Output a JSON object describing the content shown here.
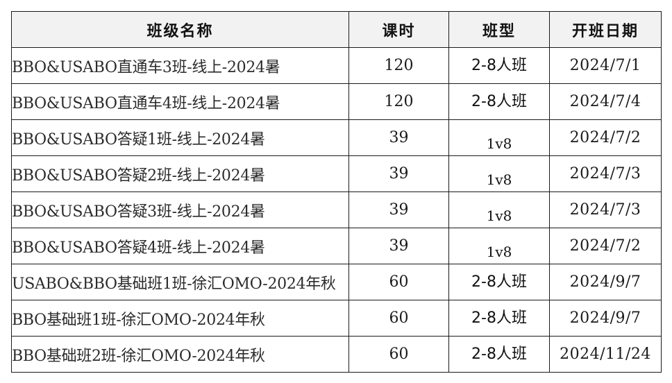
{
  "table": {
    "headers": {
      "name": "班级名称",
      "hours": "课时",
      "type": "班型",
      "start_date": "开班日期"
    },
    "rows": [
      {
        "name": "BBO&USABO直通车3班-线上-2024暑",
        "hours": "120",
        "type": "2-8人班",
        "start_date": "2024/7/1"
      },
      {
        "name": "BBO&USABO直通车4班-线上-2024暑",
        "hours": "120",
        "type": "2-8人班",
        "start_date": "2024/7/4"
      },
      {
        "name": "BBO&USABO答疑1班-线上-2024暑",
        "hours": "39",
        "type": "1v8",
        "start_date": "2024/7/2"
      },
      {
        "name": "BBO&USABO答疑2班-线上-2024暑",
        "hours": "39",
        "type": "1v8",
        "start_date": "2024/7/3"
      },
      {
        "name": "BBO&USABO答疑3班-线上-2024暑",
        "hours": "39",
        "type": "1v8",
        "start_date": "2024/7/3"
      },
      {
        "name": "BBO&USABO答疑4班-线上-2024暑",
        "hours": "39",
        "type": "1v8",
        "start_date": "2024/7/2"
      },
      {
        "name": "USABO&BBO基础班1班-徐汇OMO-2024年秋",
        "hours": "60",
        "type": "2-8人班",
        "start_date": "2024/9/7"
      },
      {
        "name": "BBO基础班1班-徐汇OMO-2024年秋",
        "hours": "60",
        "type": "2-8人班",
        "start_date": "2024/9/7"
      },
      {
        "name": "BBO基础班2班-徐汇OMO-2024年秋",
        "hours": "60",
        "type": "2-8人班",
        "start_date": "2024/11/24"
      }
    ]
  }
}
